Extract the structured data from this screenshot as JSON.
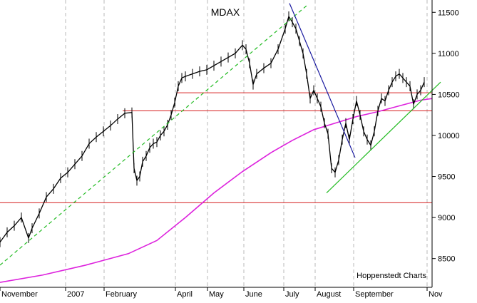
{
  "chart_data": {
    "type": "line",
    "title": "MDAX",
    "credit": "Hoppenstedt Charts",
    "y_axis_position": "right",
    "ylim": [
      8150,
      11650
    ],
    "y_ticks": [
      8500,
      9000,
      9500,
      10000,
      10500,
      11000,
      11500
    ],
    "x_tick_labels": [
      "November",
      "2007",
      "February",
      "April",
      "May",
      "June",
      "July",
      "August",
      "September",
      "Nov"
    ],
    "x_tick_positions": [
      0,
      92,
      146,
      246,
      291,
      342,
      398,
      442,
      496,
      599
    ],
    "x_range": [
      0,
      606
    ],
    "grid": "vertical dashed",
    "horizontal_levels": [
      {
        "name": "support-9180",
        "value": 9180,
        "color": "#d62020"
      },
      {
        "name": "support-10300",
        "value": 10300,
        "color": "#d62020",
        "x_from": 172
      },
      {
        "name": "resistance-10520",
        "value": 10520,
        "color": "#d62020",
        "x_from": 248
      }
    ],
    "trendlines": [
      {
        "name": "uptrend-dashed",
        "color": "#22bb22",
        "dashed": true,
        "from": [
          0,
          8420
        ],
        "to": [
          430,
          11580
        ]
      },
      {
        "name": "downtrend-blue",
        "color": "#1a1aa0",
        "dashed": false,
        "from": [
          406,
          11610
        ],
        "to": [
          498,
          9730
        ]
      },
      {
        "name": "uptrend-green",
        "color": "#22bb22",
        "dashed": false,
        "from": [
          458,
          9300
        ],
        "to": [
          618,
          10650
        ]
      }
    ],
    "moving_average": {
      "name": "200-day-average",
      "color": "#dd22dd",
      "x": [
        0,
        60,
        120,
        180,
        220,
        260,
        300,
        340,
        380,
        410,
        440,
        470,
        500,
        530,
        560,
        590,
        606
      ],
      "y": [
        8210,
        8300,
        8420,
        8560,
        8720,
        9000,
        9300,
        9560,
        9790,
        9940,
        10070,
        10150,
        10230,
        10290,
        10360,
        10430,
        10450
      ]
    },
    "price_series": {
      "name": "MDAX",
      "color": "#000000",
      "x": [
        0,
        10,
        20,
        30,
        40,
        45,
        55,
        65,
        75,
        85,
        95,
        105,
        115,
        125,
        135,
        145,
        155,
        165,
        175,
        185,
        188,
        192,
        196,
        200,
        205,
        210,
        215,
        220,
        225,
        230,
        235,
        240,
        245,
        250,
        255,
        260,
        270,
        280,
        290,
        300,
        310,
        320,
        330,
        340,
        345,
        350,
        355,
        360,
        370,
        380,
        390,
        400,
        405,
        410,
        415,
        420,
        425,
        430,
        435,
        440,
        445,
        450,
        455,
        460,
        465,
        470,
        475,
        480,
        485,
        490,
        495,
        500,
        505,
        510,
        515,
        520,
        525,
        530,
        535,
        540,
        545,
        550,
        555,
        560,
        565,
        570,
        575,
        580,
        585,
        590,
        595
      ],
      "y": [
        8700,
        8820,
        8900,
        9000,
        8750,
        8870,
        9050,
        9250,
        9350,
        9480,
        9550,
        9650,
        9750,
        9900,
        9980,
        10050,
        10120,
        10200,
        10270,
        10280,
        9600,
        9450,
        9500,
        9680,
        9750,
        9850,
        9900,
        9920,
        10000,
        10050,
        10130,
        10250,
        10400,
        10600,
        10700,
        10720,
        10750,
        10780,
        10800,
        10850,
        10900,
        10950,
        11000,
        11100,
        11050,
        10880,
        10620,
        10750,
        10820,
        10880,
        11050,
        11300,
        11450,
        11380,
        11300,
        11150,
        11000,
        10750,
        10450,
        10550,
        10450,
        10350,
        10150,
        10020,
        9600,
        9550,
        9700,
        9950,
        10150,
        9950,
        10200,
        10420,
        10250,
        10050,
        9950,
        9880,
        10050,
        10300,
        10450,
        10420,
        10550,
        10650,
        10720,
        10750,
        10700,
        10650,
        10600,
        10380,
        10500,
        10550,
        10650
      ]
    }
  }
}
